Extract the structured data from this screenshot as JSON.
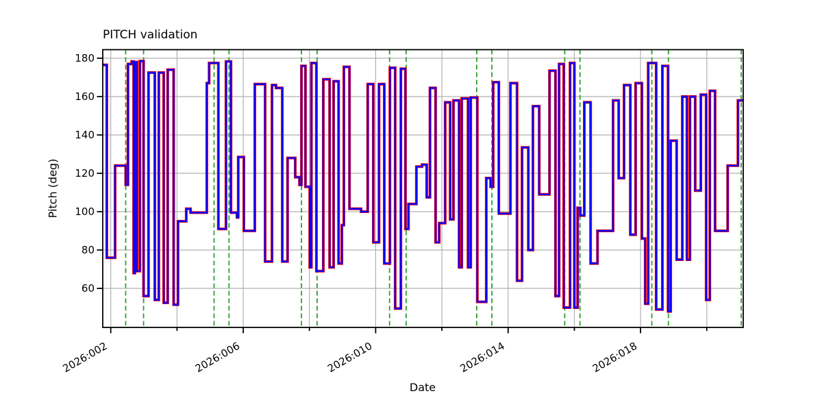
{
  "chart_data": {
    "type": "line",
    "line_style": "step-post",
    "title": "PITCH validation",
    "xlabel": "Date",
    "ylabel": "Pitch (deg)",
    "x_unit": "day-of-year 2026",
    "xlim": [
      1.758,
      21.1
    ],
    "ylim": [
      39.65,
      184.46
    ],
    "grid": true,
    "legend": "none",
    "x_major_ticks": [
      {
        "day": 2,
        "label": "2026:002"
      },
      {
        "day": 6,
        "label": "2026:006"
      },
      {
        "day": 10,
        "label": "2026:010"
      },
      {
        "day": 14,
        "label": "2026:014"
      },
      {
        "day": 18,
        "label": "2026:018"
      }
    ],
    "x_minor_ticks": [
      4,
      8,
      12,
      16,
      20
    ],
    "y_ticks": [
      60,
      80,
      100,
      120,
      140,
      160,
      180
    ],
    "series": [
      {
        "name": "red-line",
        "color": "#ff0000",
        "line_width": 4.0
      },
      {
        "name": "blue-line",
        "color": "#0000ff",
        "line_width": 2.4
      }
    ],
    "series_note": "both lines overlay the same step data (blue drawn over red)",
    "steps_day_value": [
      [
        1.758,
        176.5
      ],
      [
        1.88,
        76
      ],
      [
        2.13,
        124
      ],
      [
        2.45,
        114
      ],
      [
        2.52,
        177
      ],
      [
        2.63,
        178.3
      ],
      [
        2.69,
        68
      ],
      [
        2.73,
        178
      ],
      [
        2.79,
        69
      ],
      [
        2.88,
        178.5
      ],
      [
        2.99,
        56
      ],
      [
        3.14,
        172.5
      ],
      [
        3.33,
        54
      ],
      [
        3.45,
        172.5
      ],
      [
        3.6,
        52.5
      ],
      [
        3.72,
        174
      ],
      [
        3.9,
        51.5
      ],
      [
        4.03,
        95
      ],
      [
        4.28,
        101.5
      ],
      [
        4.41,
        99.5
      ],
      [
        4.9,
        167
      ],
      [
        4.97,
        177.5
      ],
      [
        5.25,
        91
      ],
      [
        5.48,
        178.3
      ],
      [
        5.63,
        99.5
      ],
      [
        5.81,
        97
      ],
      [
        5.85,
        128.5
      ],
      [
        6.02,
        90
      ],
      [
        6.35,
        166.5
      ],
      [
        6.66,
        74
      ],
      [
        6.87,
        166
      ],
      [
        6.99,
        164.5
      ],
      [
        7.18,
        74
      ],
      [
        7.34,
        128
      ],
      [
        7.57,
        118
      ],
      [
        7.7,
        114
      ],
      [
        7.76,
        176
      ],
      [
        7.88,
        113
      ],
      [
        8.01,
        71
      ],
      [
        8.06,
        177.5
      ],
      [
        8.21,
        69
      ],
      [
        8.42,
        169
      ],
      [
        8.61,
        71
      ],
      [
        8.73,
        168
      ],
      [
        8.88,
        73
      ],
      [
        8.98,
        93
      ],
      [
        9.04,
        175.5
      ],
      [
        9.21,
        101.5
      ],
      [
        9.56,
        100
      ],
      [
        9.76,
        166.5
      ],
      [
        9.93,
        84
      ],
      [
        10.1,
        166.5
      ],
      [
        10.26,
        73
      ],
      [
        10.43,
        175
      ],
      [
        10.59,
        49.5
      ],
      [
        10.76,
        174.5
      ],
      [
        10.9,
        91
      ],
      [
        10.99,
        104
      ],
      [
        11.23,
        123.5
      ],
      [
        11.4,
        124.5
      ],
      [
        11.54,
        107.5
      ],
      [
        11.64,
        164.5
      ],
      [
        11.81,
        84
      ],
      [
        11.92,
        94
      ],
      [
        12.1,
        157
      ],
      [
        12.25,
        96
      ],
      [
        12.35,
        158
      ],
      [
        12.52,
        71
      ],
      [
        12.6,
        159
      ],
      [
        12.79,
        71
      ],
      [
        12.87,
        159.5
      ],
      [
        13.07,
        53
      ],
      [
        13.34,
        117.5
      ],
      [
        13.47,
        113
      ],
      [
        13.55,
        167.5
      ],
      [
        13.72,
        99
      ],
      [
        14.07,
        167
      ],
      [
        14.27,
        64
      ],
      [
        14.42,
        133.5
      ],
      [
        14.61,
        80
      ],
      [
        14.75,
        155
      ],
      [
        14.94,
        109
      ],
      [
        15.25,
        173.5
      ],
      [
        15.43,
        56
      ],
      [
        15.54,
        177
      ],
      [
        15.68,
        50
      ],
      [
        15.87,
        177.5
      ],
      [
        16.0,
        50
      ],
      [
        16.1,
        102
      ],
      [
        16.18,
        98
      ],
      [
        16.3,
        157
      ],
      [
        16.49,
        73
      ],
      [
        16.7,
        90
      ],
      [
        17.17,
        158
      ],
      [
        17.34,
        117.5
      ],
      [
        17.5,
        166
      ],
      [
        17.69,
        88
      ],
      [
        17.85,
        167
      ],
      [
        18.04,
        86
      ],
      [
        18.14,
        52
      ],
      [
        18.23,
        177.5
      ],
      [
        18.47,
        49
      ],
      [
        18.66,
        176
      ],
      [
        18.83,
        48
      ],
      [
        18.91,
        137
      ],
      [
        19.09,
        75
      ],
      [
        19.26,
        160
      ],
      [
        19.4,
        75
      ],
      [
        19.49,
        160
      ],
      [
        19.65,
        111
      ],
      [
        19.82,
        161
      ],
      [
        19.98,
        54
      ],
      [
        20.09,
        163
      ],
      [
        20.25,
        90
      ],
      [
        20.63,
        124
      ],
      [
        20.94,
        158
      ]
    ],
    "event_vlines": {
      "color": "#2ca02c",
      "style": "dashed",
      "days": [
        2.45,
        2.99,
        5.12,
        5.57,
        7.76,
        8.23,
        10.42,
        10.92,
        13.05,
        13.51,
        15.71,
        16.17,
        18.34,
        18.84,
        21.04
      ]
    },
    "colors": {
      "grid": "#b0b0b0",
      "spine": "#000000",
      "background": "#ffffff",
      "tick_label": "#000000"
    }
  }
}
